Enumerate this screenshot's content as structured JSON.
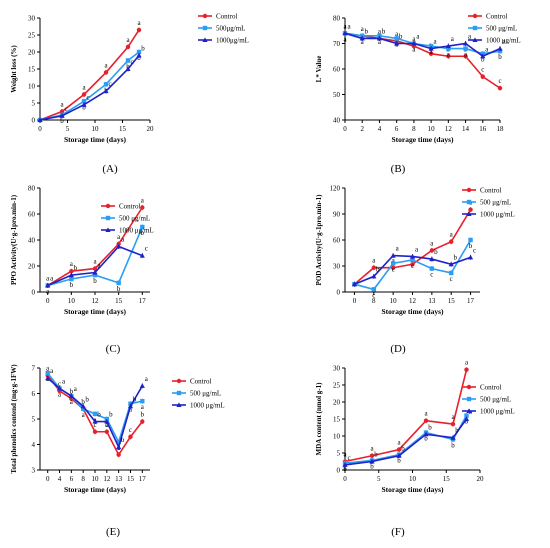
{
  "chart_data": [
    {
      "id": "A",
      "type": "line",
      "panel_label": "(A)",
      "xlabel": "Storage time (days)",
      "ylabel": "Weight loss (%)",
      "xlim": [
        0,
        20
      ],
      "ylim": [
        0,
        30
      ],
      "xticks": [
        0,
        5,
        10,
        15,
        20
      ],
      "yticks": [
        0,
        5,
        10,
        15,
        20,
        25,
        30
      ],
      "x": [
        0,
        4,
        8,
        12,
        16,
        18
      ],
      "series": [
        {
          "name": "Control",
          "color": "#e8202a",
          "marker": "circle",
          "values": [
            0,
            2.5,
            7.5,
            14,
            21.5,
            26.5
          ],
          "letters": [
            "",
            "a",
            "a",
            "a",
            "a",
            "a"
          ]
        },
        {
          "name": "500μg/mL",
          "color": "#2a9df4",
          "marker": "square",
          "values": [
            0,
            1.5,
            5.5,
            10.5,
            17.5,
            20
          ],
          "letters": [
            "",
            "b",
            "b",
            "b",
            "b",
            "b"
          ]
        },
        {
          "name": "1000μg/mL",
          "color": "#1f22c8",
          "marker": "triangle",
          "values": [
            0,
            1.2,
            4.5,
            8.5,
            15,
            19
          ],
          "letters": [
            "",
            "c",
            "c",
            "c",
            "c",
            "b"
          ]
        }
      ]
    },
    {
      "id": "B",
      "type": "line",
      "panel_label": "(B)",
      "xlabel": "Storage time (days)",
      "ylabel": "L* Value",
      "xlim": [
        0,
        18
      ],
      "ylim": [
        40,
        80
      ],
      "xticks": [
        0,
        2,
        4,
        6,
        8,
        10,
        12,
        14,
        16,
        18
      ],
      "yticks": [
        40,
        50,
        60,
        70,
        80
      ],
      "x": [
        0,
        2,
        4,
        6,
        8,
        10,
        12,
        14,
        16,
        18
      ],
      "series": [
        {
          "name": "Control",
          "color": "#e8202a",
          "marker": "circle",
          "values": [
            74,
            73,
            72,
            71,
            69,
            66,
            65,
            65,
            57,
            52.5
          ],
          "letters": [
            "a",
            "a",
            "a",
            "a",
            "a",
            "b",
            "b",
            "b",
            "c",
            "c"
          ]
        },
        {
          "name": "500 μg/mL",
          "color": "#2a9df4",
          "marker": "square",
          "values": [
            74,
            73,
            73,
            72,
            70,
            69,
            68,
            68,
            66,
            67
          ],
          "letters": [
            "a",
            "a",
            "a",
            "a",
            "a",
            "a",
            "a",
            "a",
            "b",
            "b"
          ]
        },
        {
          "name": "1000 μg/mL",
          "color": "#1f22c8",
          "marker": "triangle",
          "values": [
            74,
            72,
            72,
            70,
            70,
            68,
            69,
            70,
            65,
            68
          ],
          "letters": [
            "a",
            "b",
            "b",
            "b",
            "a",
            "a",
            "a",
            "a",
            "a",
            "a"
          ]
        }
      ]
    },
    {
      "id": "C",
      "type": "line",
      "panel_label": "(C)",
      "xlabel": "Storage time (days)",
      "ylabel": "PPO Activity(U·g-1pro.min-1)",
      "ylim": [
        0,
        80
      ],
      "categories": [
        "0",
        "10",
        "12",
        "15",
        "17"
      ],
      "yticks": [
        0,
        20,
        40,
        60,
        80
      ],
      "series": [
        {
          "name": "Control",
          "color": "#e8202a",
          "marker": "circle",
          "values": [
            5,
            16,
            18,
            37,
            65
          ],
          "letters": [
            "a",
            "a",
            "a",
            "a",
            "a"
          ]
        },
        {
          "name": "500 μg/mL",
          "color": "#2a9df4",
          "marker": "square",
          "values": [
            5,
            10,
            13,
            7,
            50
          ],
          "letters": [
            "a",
            "b",
            "b",
            "b",
            "b"
          ]
        },
        {
          "name": "1000 μg/mL",
          "color": "#1f22c8",
          "marker": "triangle",
          "values": [
            5,
            13,
            15,
            35,
            28
          ],
          "letters": [
            "a",
            "b",
            "a",
            "a",
            "c"
          ]
        }
      ]
    },
    {
      "id": "D",
      "type": "line",
      "panel_label": "(D)",
      "xlabel": "Storage time (days)",
      "ylabel": "POD Activity(U·g-1pro.min-1)",
      "ylim": [
        0,
        120
      ],
      "categories": [
        "0",
        "8",
        "10",
        "12",
        "13",
        "15",
        "17"
      ],
      "yticks": [
        0,
        30,
        60,
        90,
        120
      ],
      "series": [
        {
          "name": "Control",
          "color": "#e8202a",
          "marker": "circle",
          "values": [
            9,
            28,
            28,
            32,
            48,
            58,
            95
          ],
          "letters": [
            "",
            "a",
            "a",
            "a",
            "a",
            "a",
            "a"
          ]
        },
        {
          "name": "500 μg/mL",
          "color": "#2a9df4",
          "marker": "square",
          "values": [
            9,
            3,
            33,
            37,
            27,
            22,
            60
          ],
          "letters": [
            "",
            "c",
            "c",
            "c",
            "c",
            "c",
            "b"
          ]
        },
        {
          "name": "1000 μg/mL",
          "color": "#1f22c8",
          "marker": "triangle",
          "values": [
            9,
            18,
            42,
            41,
            38,
            32,
            40
          ],
          "letters": [
            "",
            "b",
            "a",
            "a",
            "b",
            "b",
            "c"
          ]
        }
      ]
    },
    {
      "id": "E",
      "type": "line",
      "panel_label": "(E)",
      "xlabel": "Storage time (days)",
      "ylabel": "Total phenolics contend (mg·g-1FW)",
      "ylim": [
        3,
        7
      ],
      "categories": [
        "0",
        "4",
        "6",
        "8",
        "10",
        "12",
        "13",
        "15",
        "17"
      ],
      "yticks": [
        3,
        4,
        5,
        6,
        7
      ],
      "series": [
        {
          "name": "Control",
          "color": "#e8202a",
          "marker": "circle",
          "values": [
            6.7,
            6.1,
            5.8,
            5.4,
            4.5,
            4.5,
            3.6,
            4.3,
            4.9
          ],
          "letters": [
            "a",
            "c",
            "b",
            "b",
            "c",
            "c",
            "c",
            "c",
            "b"
          ]
        },
        {
          "name": "500 μg/mL",
          "color": "#2a9df4",
          "marker": "square",
          "values": [
            6.8,
            6.2,
            5.9,
            5.4,
            5.2,
            5.0,
            4.1,
            5.6,
            5.7
          ],
          "letters": [
            "a",
            "a",
            "a",
            "a",
            "a",
            "a",
            "a",
            "a",
            "a"
          ]
        },
        {
          "name": "1000 μg/mL",
          "color": "#1f22c8",
          "marker": "triangle",
          "values": [
            6.6,
            6.2,
            5.9,
            5.5,
            4.9,
            4.9,
            3.9,
            5.5,
            6.3
          ],
          "letters": [
            "a",
            "a",
            "a",
            "b",
            "b",
            "b",
            "b",
            "b",
            "a"
          ]
        }
      ]
    },
    {
      "id": "F",
      "type": "line",
      "panel_label": "(F)",
      "xlabel": "Storage time (days)",
      "ylabel": "MDA content (nmol g-1)",
      "xlim": [
        0,
        20
      ],
      "ylim": [
        0,
        30
      ],
      "xticks": [
        0,
        5,
        10,
        15,
        20
      ],
      "yticks": [
        0,
        5,
        10,
        15,
        20,
        25,
        30
      ],
      "x": [
        0,
        4,
        8,
        12,
        16,
        18
      ],
      "series": [
        {
          "name": "Control",
          "color": "#e8202a",
          "marker": "circle",
          "values": [
            2.5,
            4.2,
            6,
            14.5,
            13.5,
            29.5
          ],
          "letters": [
            "a",
            "a",
            "a",
            "a",
            "a",
            "a"
          ]
        },
        {
          "name": "500 μg/mL",
          "color": "#2a9df4",
          "marker": "square",
          "values": [
            2,
            2.8,
            4.5,
            11,
            9,
            16
          ],
          "letters": [
            "b",
            "b",
            "b",
            "b",
            "b",
            "b"
          ]
        },
        {
          "name": "1000 μg/mL",
          "color": "#1f22c8",
          "marker": "triangle",
          "values": [
            1.5,
            2.5,
            4.2,
            10.5,
            9.5,
            15
          ],
          "letters": [
            "c",
            "b",
            "b",
            "b",
            "b",
            "b"
          ]
        }
      ]
    }
  ]
}
